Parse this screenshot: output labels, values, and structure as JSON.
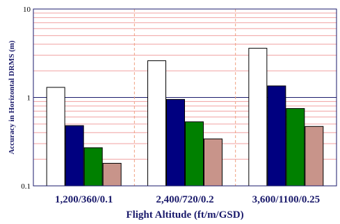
{
  "chart_data": {
    "type": "bar",
    "yscale": "log",
    "ylim": [
      0.1,
      10
    ],
    "yticks": [
      "10",
      "1",
      "0.1"
    ],
    "xlabel": "Flight Altitude (ft/m/GSD)",
    "ylabel": "Accuracy in Horizontal DRMS (m)",
    "categories": [
      "1,200/360/0.1",
      "2,400/720/0.2",
      "3,600/1100/0.25"
    ],
    "series": [
      {
        "color": "#ffffff",
        "values": [
          1.3,
          2.6,
          3.6
        ]
      },
      {
        "color": "#000080",
        "values": [
          0.48,
          0.95,
          1.35
        ]
      },
      {
        "color": "#008000",
        "values": [
          0.27,
          0.53,
          0.75
        ]
      },
      {
        "color": "#c8948a",
        "values": [
          0.18,
          0.34,
          0.47
        ]
      }
    ],
    "grid": true,
    "colors": {
      "major_grid": "#1a1a6b",
      "minor_grid": "#f0a0a0",
      "category_divider": "#f0a080",
      "axis_text": "#1a1a6b"
    }
  }
}
